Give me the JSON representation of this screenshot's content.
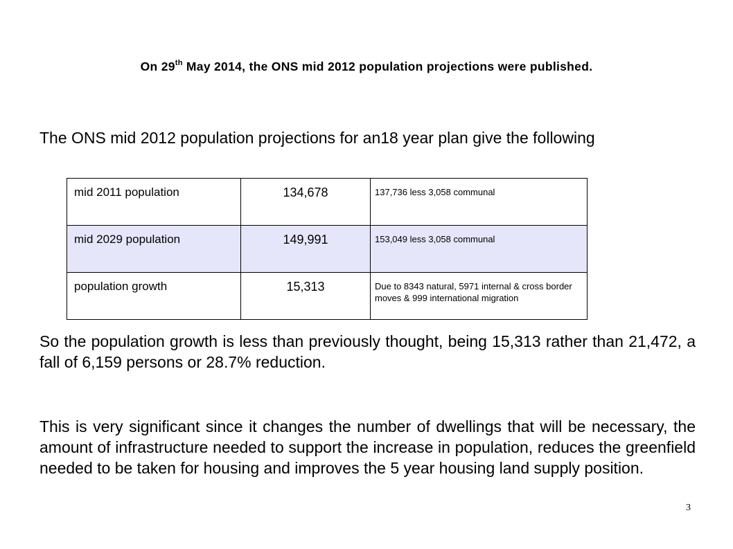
{
  "slide": {
    "heading": {
      "pre": "On 29",
      "sup": "th",
      "post": " May 2014, the ONS mid 2012 population projections were published."
    },
    "intro": "The ONS mid 2012 population projections for an18 year plan give the following",
    "table": {
      "rows": [
        {
          "label": "mid 2011 population",
          "value": "134,678",
          "note": "137,736 less 3,058 communal"
        },
        {
          "label": "mid 2029 population",
          "value": "149,991",
          "note": "153,049 less 3,058 communal"
        },
        {
          "label": "population growth",
          "value": "15,313",
          "note": "Due to 8343 natural, 5971 internal & cross border moves & 999 international migration"
        }
      ]
    },
    "paragraph1": "So the population growth is less than previously thought, being 15,313  rather than 21,472, a  fall of 6,159 persons or 28.7% reduction.",
    "paragraph2": "This is very significant since it changes the number of dwellings that will be necessary, the amount of infrastructure needed to support the increase in population, reduces the greenfield needed to be taken for housing and improves the 5 year housing land supply position.",
    "page_number": "3"
  },
  "colors": {
    "highlight_row": "#e6e6fa",
    "text": "#000000",
    "background": "#ffffff"
  }
}
